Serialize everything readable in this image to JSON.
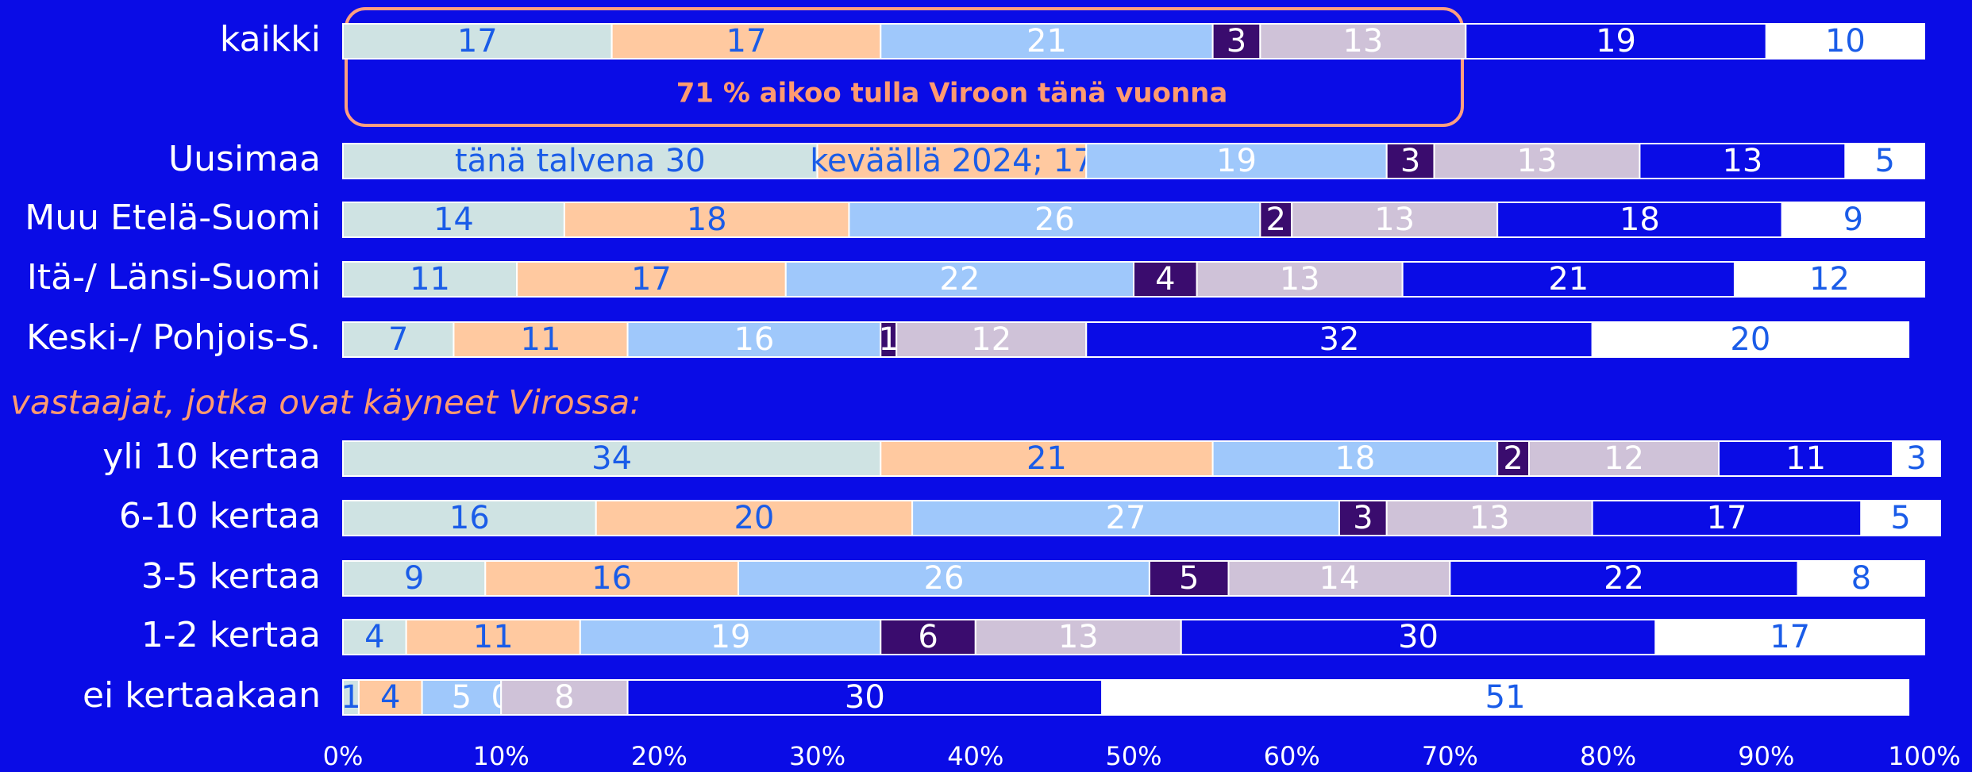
{
  "chart_data": {
    "type": "stacked_bar_horizontal",
    "categories": [
      "kaikki",
      "Uusimaa",
      "Muu Etelä-Suomi",
      "Itä-/ Länsi-Suomi",
      "Keski-/ Pohjois-S.",
      "yli 10 kertaa",
      "6-10 kertaa",
      "3-5 kertaa",
      "1-2 kertaa",
      "ei kertaakaan"
    ],
    "annotations": [
      "71 % aikoo tulla Viroon tänä vuonna",
      "vastaajat, jotka ovat käyneet Virossa:"
    ],
    "series": [
      {
        "color": "#cfe3e3",
        "label_color": "#1a5ce8",
        "values": [
          17,
          30,
          14,
          11,
          7,
          34,
          16,
          9,
          4,
          1
        ],
        "value_labels": [
          "17",
          "tänä talvena  30",
          "14",
          "11",
          "7",
          "34",
          "16",
          "9",
          "4",
          "1"
        ]
      },
      {
        "color": "#ffc9a0",
        "label_color": "#1a5ce8",
        "values": [
          17,
          17,
          18,
          17,
          11,
          21,
          20,
          16,
          11,
          4
        ],
        "value_labels": [
          "17",
          "keväällä 2024; 17",
          "18",
          "17",
          "11",
          "21",
          "20",
          "16",
          "11",
          "4"
        ]
      },
      {
        "color": "#9fc8fb",
        "label_color": "#ffffff",
        "values": [
          21,
          19,
          26,
          22,
          16,
          18,
          27,
          26,
          19,
          5
        ]
      },
      {
        "color": "#3a0c6e",
        "label_color": "#ffffff",
        "values": [
          3,
          3,
          2,
          4,
          1,
          2,
          3,
          5,
          6,
          0
        ]
      },
      {
        "color": "#cfc2d8",
        "label_color": "#ffffff",
        "values": [
          13,
          13,
          13,
          13,
          12,
          12,
          13,
          14,
          13,
          8
        ]
      },
      {
        "color": "#0a0ce6",
        "label_color": "#ffffff",
        "values": [
          19,
          13,
          18,
          21,
          32,
          11,
          17,
          22,
          30,
          30
        ]
      },
      {
        "color": "#ffffff",
        "label_color": "#1a5ce8",
        "values": [
          10,
          5,
          9,
          12,
          20,
          3,
          5,
          8,
          17,
          51
        ]
      }
    ],
    "xlim": [
      0,
      100
    ],
    "xticks": [
      {
        "value": 0,
        "label": "0%"
      },
      {
        "value": 10,
        "label": "10%"
      },
      {
        "value": 20,
        "label": "20%"
      },
      {
        "value": 30,
        "label": "30%"
      },
      {
        "value": 40,
        "label": "40%"
      },
      {
        "value": 50,
        "label": "50%"
      },
      {
        "value": 60,
        "label": "60%"
      },
      {
        "value": 70,
        "label": "70%"
      },
      {
        "value": 80,
        "label": "80%"
      },
      {
        "value": 90,
        "label": "90%"
      },
      {
        "value": 100,
        "label": "100%"
      }
    ]
  }
}
